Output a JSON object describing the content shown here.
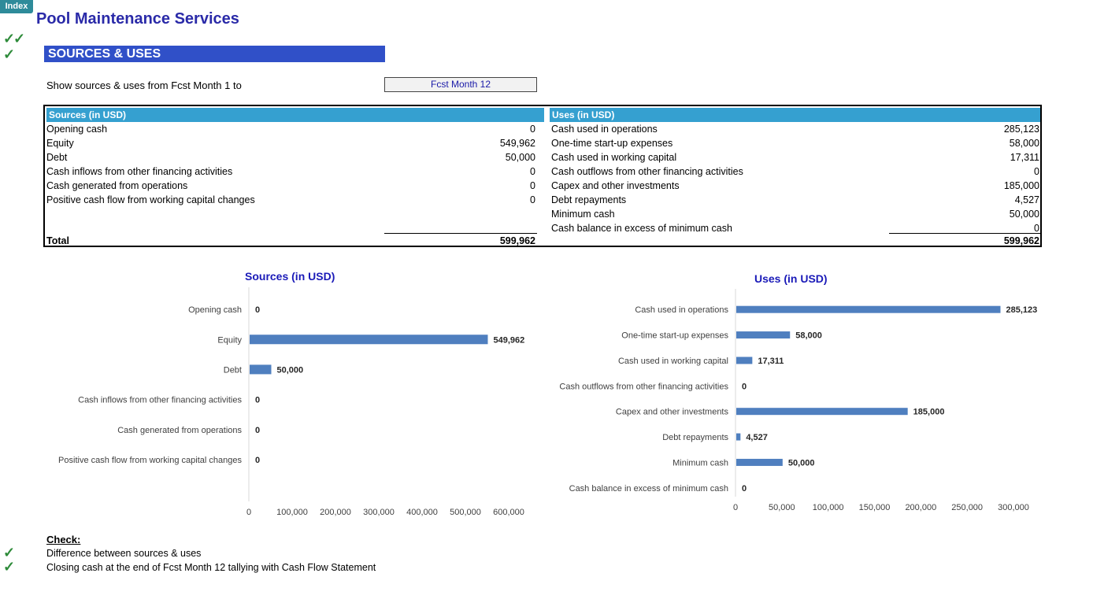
{
  "index_label": "Index",
  "title": "Pool Maintenance Services",
  "section_title": "SOURCES & USES",
  "range": {
    "label": "Show sources & uses from Fcst Month 1 to",
    "selected": "Fcst Month 12"
  },
  "table": {
    "sources_header": "Sources (in USD)",
    "uses_header": "Uses (in USD)",
    "sources": [
      {
        "label": "Opening cash",
        "value": "0"
      },
      {
        "label": "Equity",
        "value": "549,962"
      },
      {
        "label": "Debt",
        "value": "50,000"
      },
      {
        "label": "Cash inflows from other financing activities",
        "value": "0"
      },
      {
        "label": "Cash generated from operations",
        "value": "0"
      },
      {
        "label": "Positive cash flow from working capital changes",
        "value": "0"
      }
    ],
    "uses": [
      {
        "label": "Cash used in operations",
        "value": "285,123"
      },
      {
        "label": "One-time start-up expenses",
        "value": "58,000"
      },
      {
        "label": "Cash used in working capital",
        "value": "17,311"
      },
      {
        "label": "Cash outflows from other  financing activities",
        "value": "0"
      },
      {
        "label": "Capex and other investments",
        "value": "185,000"
      },
      {
        "label": "Debt repayments",
        "value": "4,527"
      },
      {
        "label": "Minimum cash",
        "value": "50,000"
      },
      {
        "label": "Cash balance in excess of minimum cash",
        "value": "0"
      }
    ],
    "total_label": "Total",
    "sources_total": "599,962",
    "uses_total": "599,962"
  },
  "chart_data": [
    {
      "type": "bar",
      "orientation": "horizontal",
      "title": "Sources (in USD)",
      "categories": [
        "Opening cash",
        "Equity",
        "Debt",
        "Cash inflows from other financing activities",
        "Cash generated from operations",
        "Positive cash flow from working capital changes"
      ],
      "values": [
        0,
        549962,
        50000,
        0,
        0,
        0
      ],
      "value_labels": [
        "0",
        "549,962",
        "50,000",
        "0",
        "0",
        "0"
      ],
      "xlim": [
        0,
        600000
      ],
      "ticks": [
        0,
        100000,
        200000,
        300000,
        400000,
        500000,
        600000
      ],
      "tick_labels": [
        "0",
        "100,000",
        "200,000",
        "300,000",
        "400,000",
        "500,000",
        "600,000"
      ],
      "color": "#4f7fbf"
    },
    {
      "type": "bar",
      "orientation": "horizontal",
      "title": "Uses (in USD)",
      "categories": [
        "Cash used in operations",
        "One-time start-up expenses",
        "Cash used in working capital",
        "Cash outflows from other  financing activities",
        "Capex and other investments",
        "Debt repayments",
        "Minimum cash",
        "Cash balance in excess of minimum cash"
      ],
      "values": [
        285123,
        58000,
        17311,
        0,
        185000,
        4527,
        50000,
        0
      ],
      "value_labels": [
        "285,123",
        "58,000",
        "17,311",
        "0",
        "185,000",
        "4,527",
        "50,000",
        "0"
      ],
      "xlim": [
        0,
        300000
      ],
      "ticks": [
        0,
        50000,
        100000,
        150000,
        200000,
        250000,
        300000
      ],
      "tick_labels": [
        "0",
        "50,000",
        "100,000",
        "150,000",
        "200,000",
        "250,000",
        "300,000"
      ],
      "color": "#4f7fbf"
    }
  ],
  "checks": {
    "heading": "Check:",
    "items": [
      "Difference between sources & uses",
      "Closing cash at the end of Fcst Month 12 tallying with Cash Flow Statement"
    ]
  },
  "colors": {
    "accent": "#3050c8",
    "table_header": "#35a0d0",
    "check": "#2e8b3a",
    "bar": "#4f7fbf"
  }
}
